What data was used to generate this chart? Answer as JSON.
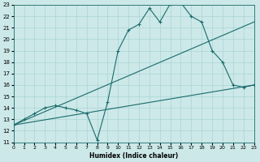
{
  "xlabel": "Humidex (Indice chaleur)",
  "bg_color": "#cce8e8",
  "line_color": "#1a6b6b",
  "grid_color": "#aad4d4",
  "xlim": [
    0,
    23
  ],
  "ylim": [
    11,
    23
  ],
  "xticks": [
    0,
    1,
    2,
    3,
    4,
    5,
    6,
    7,
    8,
    9,
    10,
    11,
    12,
    13,
    14,
    15,
    16,
    17,
    18,
    19,
    20,
    21,
    22,
    23
  ],
  "yticks": [
    11,
    12,
    13,
    14,
    15,
    16,
    17,
    18,
    19,
    20,
    21,
    22,
    23
  ],
  "line1_x": [
    0,
    1,
    2,
    3,
    4,
    5,
    6,
    7,
    8,
    9,
    10,
    11,
    12,
    13,
    14,
    15,
    16,
    17,
    18,
    19,
    20,
    21,
    22,
    23
  ],
  "line1_y": [
    12.5,
    13.0,
    13.5,
    14.0,
    14.2,
    14.0,
    13.8,
    13.5,
    11.2,
    14.5,
    19.0,
    20.8,
    21.3,
    22.7,
    21.5,
    23.1,
    23.2,
    22.0,
    21.5,
    19.0,
    18.0,
    16.0,
    15.8,
    16.0
  ],
  "line2_x": [
    0,
    23
  ],
  "line2_y": [
    12.5,
    21.5
  ],
  "line3_x": [
    0,
    23
  ],
  "line3_y": [
    12.5,
    16.0
  ]
}
